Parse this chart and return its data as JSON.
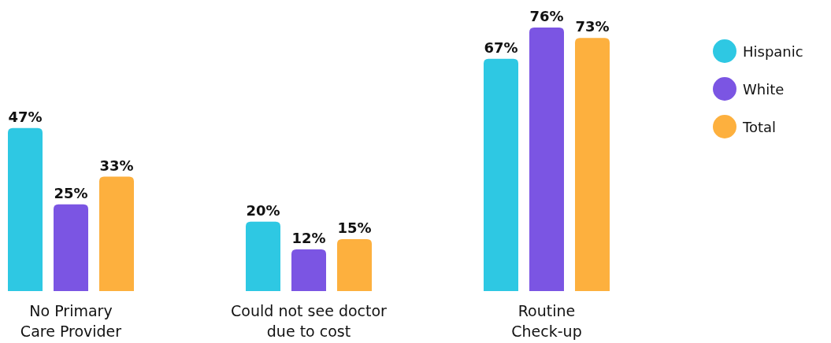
{
  "chart_data": {
    "type": "bar",
    "categories": [
      "No Primary\nCare Provider",
      "Could not see doctor\ndue to cost",
      "Routine\nCheck-up"
    ],
    "series": [
      {
        "name": "Hispanic",
        "color": "#2ec8e3",
        "values": [
          47,
          20,
          67
        ],
        "value_labels": [
          "47%",
          "20%",
          "67%"
        ]
      },
      {
        "name": "White",
        "color": "#7b55e3",
        "values": [
          25,
          12,
          76
        ],
        "value_labels": [
          "25%",
          "12%",
          "76%"
        ]
      },
      {
        "name": "Total",
        "color": "#fdb03e",
        "values": [
          33,
          15,
          73
        ],
        "value_labels": [
          "33%",
          "15%",
          "73%"
        ]
      }
    ],
    "legend": "right"
  }
}
